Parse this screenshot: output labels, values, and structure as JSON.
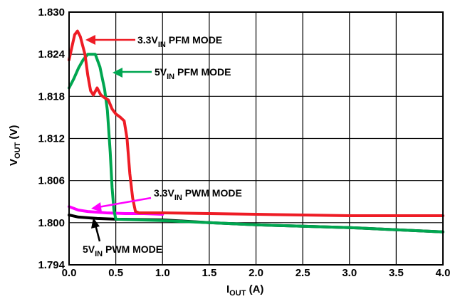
{
  "chart_data": {
    "type": "line",
    "title": "",
    "xlabel": {
      "main": "I",
      "sub": "OUT",
      "suffix": " (A)"
    },
    "ylabel": {
      "main": "V",
      "sub": "OUT",
      "suffix": " (V)"
    },
    "xlim": [
      0,
      4
    ],
    "ylim": [
      1.794,
      1.83
    ],
    "grid": true,
    "xticks": [
      "0.0",
      "0.5",
      "1.0",
      "1.5",
      "2.0",
      "2.5",
      "3.0",
      "3.5",
      "4.0"
    ],
    "yticks": [
      "1.794",
      "1.800",
      "1.806",
      "1.812",
      "1.818",
      "1.824",
      "1.830"
    ],
    "series": [
      {
        "label": {
          "pre": "3.3V",
          "sub": "IN",
          "post": " PWM MODE"
        },
        "color": "#ff00ff",
        "points": [
          [
            0,
            1.8023
          ],
          [
            0.1,
            1.8018
          ],
          [
            0.2,
            1.8016
          ],
          [
            0.4,
            1.8014
          ],
          [
            0.6,
            1.8013
          ],
          [
            0.8,
            1.8013
          ],
          [
            1.0,
            1.8012
          ]
        ]
      },
      {
        "label": {
          "pre": "5V",
          "sub": "IN",
          "post": " PWM MODE"
        },
        "color": "#000000",
        "points": [
          [
            0,
            1.8011
          ],
          [
            0.1,
            1.8008
          ],
          [
            0.3,
            1.8006
          ],
          [
            0.5,
            1.8005
          ],
          [
            1.0,
            1.8004
          ],
          [
            1.5,
            1.8
          ],
          [
            2.0,
            1.7997
          ],
          [
            2.5,
            1.7995
          ],
          [
            3.0,
            1.7993
          ],
          [
            3.5,
            1.799
          ],
          [
            4.0,
            1.7987
          ]
        ]
      },
      {
        "label": {
          "pre": "5V",
          "sub": "IN",
          "post": " PFM MODE"
        },
        "color": "#00a650",
        "points": [
          [
            0,
            1.8192
          ],
          [
            0.05,
            1.8205
          ],
          [
            0.1,
            1.822
          ],
          [
            0.15,
            1.8232
          ],
          [
            0.2,
            1.824
          ],
          [
            0.28,
            1.824
          ],
          [
            0.33,
            1.8222
          ],
          [
            0.38,
            1.819
          ],
          [
            0.41,
            1.816
          ],
          [
            0.44,
            1.81
          ],
          [
            0.46,
            1.805
          ],
          [
            0.48,
            1.8018
          ],
          [
            0.5,
            1.8005
          ],
          [
            1.0,
            1.8003
          ],
          [
            1.5,
            1.8
          ],
          [
            2.0,
            1.7997
          ],
          [
            2.5,
            1.7995
          ],
          [
            3.0,
            1.7993
          ],
          [
            3.5,
            1.799
          ],
          [
            4.0,
            1.7987
          ]
        ]
      },
      {
        "label": {
          "pre": "3.3V",
          "sub": "IN",
          "post": " PFM MODE"
        },
        "color": "#ee1c25",
        "points": [
          [
            0,
            1.8232
          ],
          [
            0.03,
            1.825
          ],
          [
            0.06,
            1.8268
          ],
          [
            0.09,
            1.8273
          ],
          [
            0.12,
            1.8265
          ],
          [
            0.17,
            1.824
          ],
          [
            0.2,
            1.821
          ],
          [
            0.23,
            1.8188
          ],
          [
            0.26,
            1.8182
          ],
          [
            0.3,
            1.8192
          ],
          [
            0.34,
            1.8182
          ],
          [
            0.38,
            1.8178
          ],
          [
            0.42,
            1.8175
          ],
          [
            0.46,
            1.8162
          ],
          [
            0.5,
            1.8155
          ],
          [
            0.55,
            1.815
          ],
          [
            0.59,
            1.8145
          ],
          [
            0.62,
            1.812
          ],
          [
            0.65,
            1.807
          ],
          [
            0.68,
            1.8035
          ],
          [
            0.71,
            1.8016
          ],
          [
            0.75,
            1.8014
          ],
          [
            1.0,
            1.8014
          ],
          [
            1.5,
            1.8013
          ],
          [
            2.0,
            1.8012
          ],
          [
            2.5,
            1.8011
          ],
          [
            3.0,
            1.801
          ],
          [
            3.5,
            1.801
          ],
          [
            4.0,
            1.801
          ]
        ]
      }
    ]
  }
}
